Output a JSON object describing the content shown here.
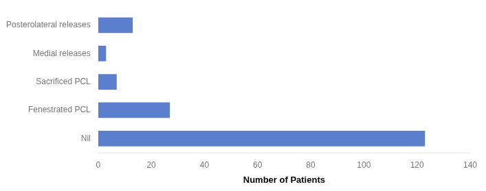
{
  "chart_data": {
    "type": "bar",
    "orientation": "horizontal",
    "categories": [
      "Posterolateral releases",
      "Medial releases",
      "Sacrificed PCL",
      "Fenestrated PCL",
      "Nil"
    ],
    "values": [
      13,
      3,
      7,
      27,
      123
    ],
    "color": "#5b7fcc",
    "xlabel": "Number of Patients",
    "xlim": [
      0,
      140
    ],
    "xticks": [
      0,
      20,
      40,
      60,
      80,
      100,
      120,
      140
    ],
    "grid": false
  }
}
